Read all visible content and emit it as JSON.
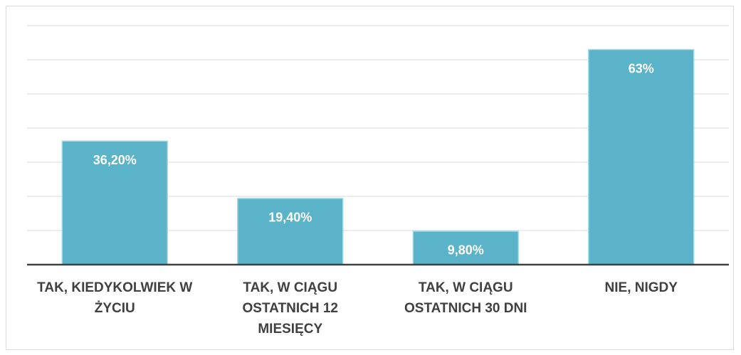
{
  "chart_data": {
    "type": "bar",
    "categories": [
      "TAK, KIEDYKOLWIEK W ŻYCIU",
      "TAK, W CIĄGU OSTATNICH 12 MIESIĘCY",
      "TAK, W CIĄGU OSTATNICH 30 DNI",
      "NIE, NIGDY"
    ],
    "values": [
      36.2,
      19.4,
      9.8,
      63
    ],
    "value_labels": [
      "36,20%",
      "19,40%",
      "9,80%",
      "63%"
    ],
    "color": "#5bb3c9",
    "ylim": [
      0,
      70
    ],
    "yticks": [
      0,
      10,
      20,
      30,
      40,
      50,
      60,
      70
    ],
    "grid": true
  }
}
